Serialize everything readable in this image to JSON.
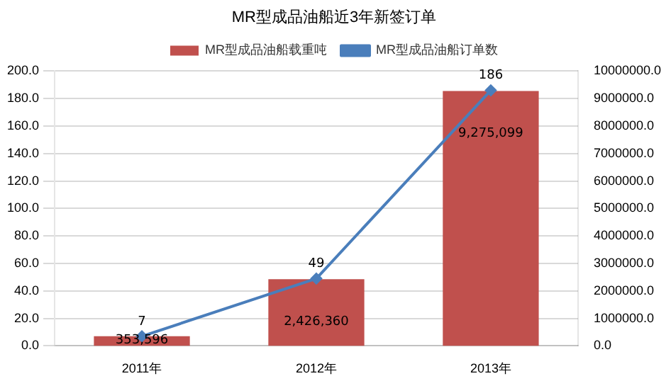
{
  "chart_data": {
    "type": "bar",
    "title": "MR型成品油船近3年新签订单",
    "categories": [
      "2011年",
      "2012年",
      "2013年"
    ],
    "series": [
      {
        "name": "MR型成品油船载重吨",
        "axis": "y2",
        "color": "#c0504d",
        "values": [
          353596,
          2426360,
          9275099
        ],
        "value_labels": [
          "353,596",
          "2,426,360",
          "9,275,099"
        ]
      },
      {
        "name": "MR型成品油船订单数",
        "type": "line",
        "color": "#4a7ebb",
        "values": [
          7,
          49,
          186
        ],
        "value_labels": [
          "7",
          "49",
          "186"
        ]
      }
    ],
    "ylim": [
      0,
      200
    ],
    "yticks": [
      {
        "value": 0,
        "label": "0.0"
      },
      {
        "value": 20,
        "label": "20.0"
      },
      {
        "value": 40,
        "label": "40.0"
      },
      {
        "value": 60,
        "label": "60.0"
      },
      {
        "value": 80,
        "label": "80.0"
      },
      {
        "value": 100,
        "label": "100.0"
      },
      {
        "value": 120,
        "label": "120.0"
      },
      {
        "value": 140,
        "label": "140.0"
      },
      {
        "value": 160,
        "label": "160.0"
      },
      {
        "value": 180,
        "label": "180.0"
      },
      {
        "value": 200,
        "label": "200.0"
      }
    ],
    "y2lim": [
      0,
      10000000
    ],
    "y2ticks": [
      {
        "value": 0,
        "label": "0.0"
      },
      {
        "value": 1000000,
        "label": "1000000.0"
      },
      {
        "value": 2000000,
        "label": "2000000.0"
      },
      {
        "value": 3000000,
        "label": "3000000.0"
      },
      {
        "value": 4000000,
        "label": "4000000.0"
      },
      {
        "value": 5000000,
        "label": "5000000.0"
      },
      {
        "value": 6000000,
        "label": "6000000.0"
      },
      {
        "value": 7000000,
        "label": "7000000.0"
      },
      {
        "value": 8000000,
        "label": "8000000.0"
      },
      {
        "value": 9000000,
        "label": "9000000.0"
      },
      {
        "value": 10000000,
        "label": "10000000.0"
      }
    ],
    "grid": "y",
    "legend": "top",
    "marker": "diamond"
  }
}
